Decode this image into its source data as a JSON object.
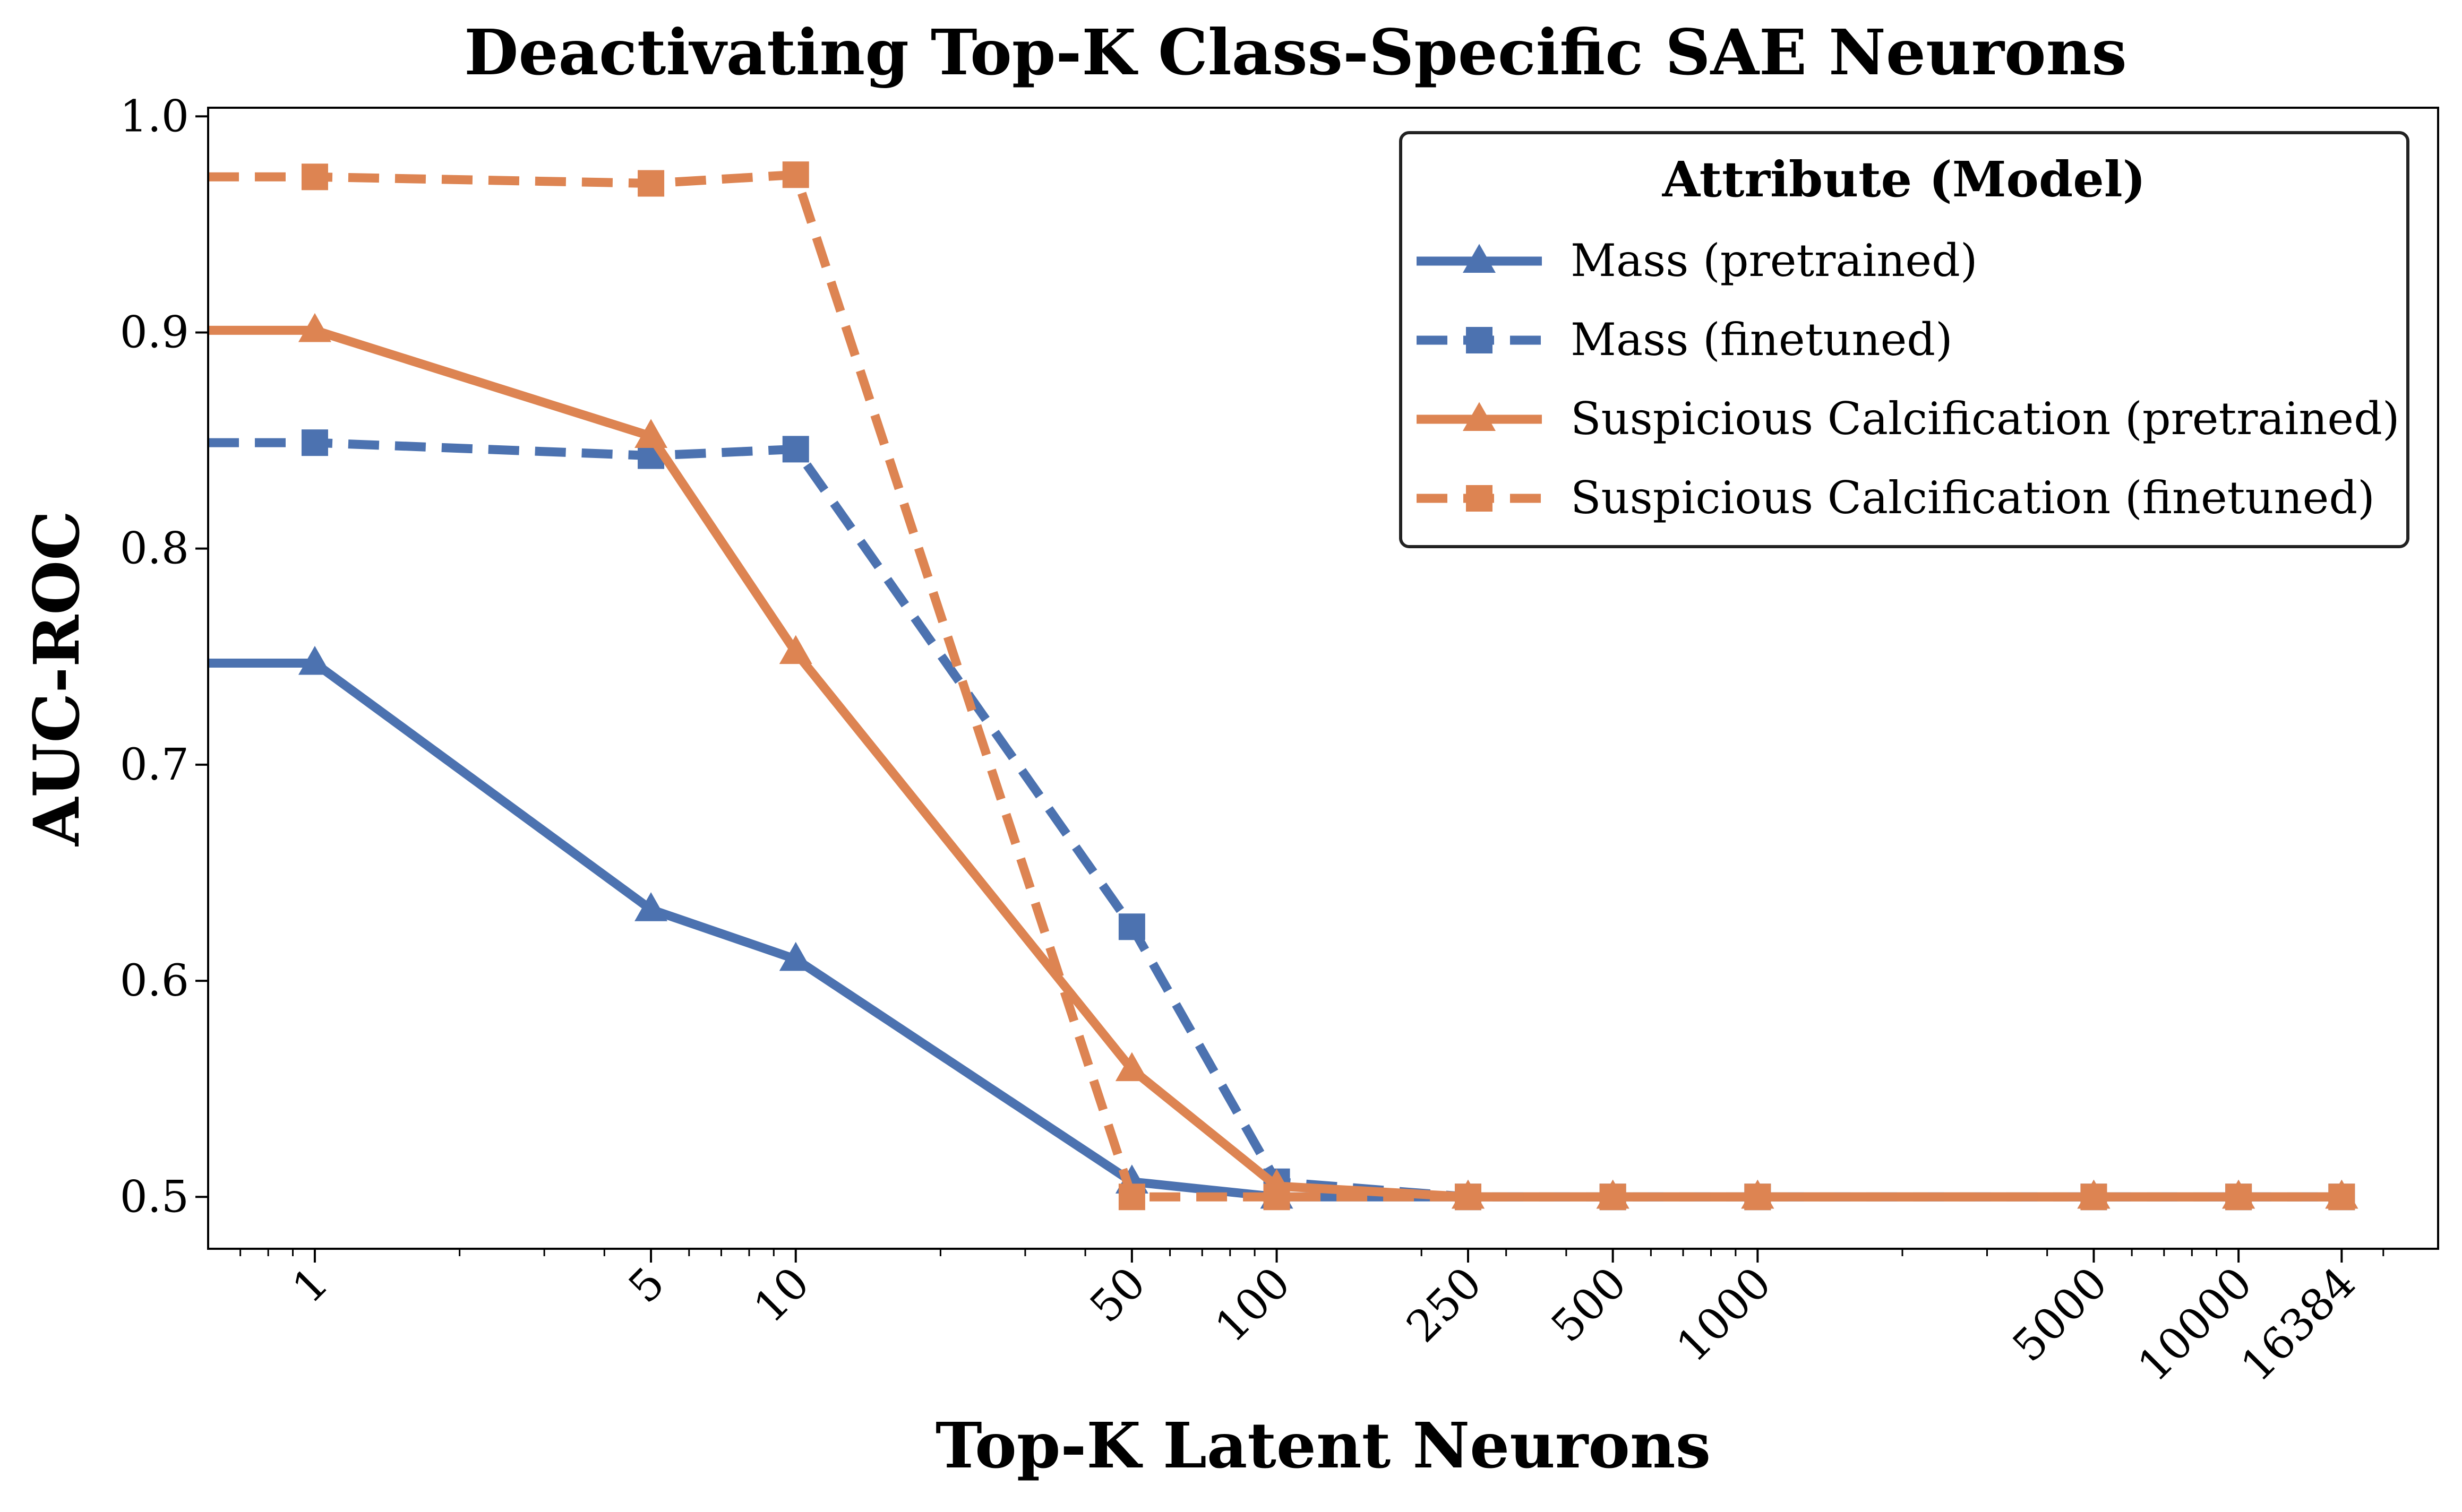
{
  "chart_data": {
    "type": "line",
    "title": "Deactivating Top-K Class-Specific SAE Neurons",
    "xlabel": "Top-K Latent Neurons",
    "ylabel": "AUC-ROC",
    "xscale": "log",
    "xlim": [
      0.6,
      26000
    ],
    "ylim": [
      0.476,
      1.004
    ],
    "x_ticks": [
      1,
      5,
      10,
      50,
      100,
      250,
      500,
      1000,
      5000,
      10000,
      16384
    ],
    "x_tick_labels": [
      "1",
      "5",
      "10",
      "50",
      "100",
      "250",
      "500",
      "1000",
      "5000",
      "10000",
      "16384"
    ],
    "y_ticks": [
      0.5,
      0.6,
      0.7,
      0.8,
      0.9,
      1.0
    ],
    "y_tick_labels": [
      "0.5",
      "0.6",
      "0.7",
      "0.8",
      "0.9",
      "1.0"
    ],
    "grid": false,
    "legend": {
      "title": "Attribute (Model)",
      "position": "top-right"
    },
    "series": [
      {
        "name": "Mass (pretrained)",
        "color": "#4c72b0",
        "linestyle": "solid",
        "marker": "triangle",
        "x": [
          0.6,
          1,
          5,
          10,
          50,
          100,
          250,
          500,
          1000,
          5000,
          10000,
          16384
        ],
        "y": [
          0.747,
          0.747,
          0.633,
          0.61,
          0.507,
          0.5,
          0.5,
          0.5,
          0.5,
          0.5,
          0.5,
          0.5
        ]
      },
      {
        "name": "Mass (finetuned)",
        "color": "#4c72b0",
        "linestyle": "dashed",
        "marker": "square",
        "x": [
          0.6,
          1,
          5,
          10,
          50,
          100,
          250,
          500,
          1000,
          5000,
          10000,
          16384
        ],
        "y": [
          0.849,
          0.849,
          0.843,
          0.846,
          0.625,
          0.507,
          0.5,
          0.5,
          0.5,
          0.5,
          0.5,
          0.5
        ]
      },
      {
        "name": "Suspicious Calcification (pretrained)",
        "color": "#dd8452",
        "linestyle": "solid",
        "marker": "triangle",
        "x": [
          0.6,
          1,
          5,
          10,
          50,
          100,
          250,
          500,
          1000,
          5000,
          10000,
          16384
        ],
        "y": [
          0.901,
          0.901,
          0.852,
          0.752,
          0.559,
          0.505,
          0.5,
          0.5,
          0.5,
          0.5,
          0.5,
          0.5
        ]
      },
      {
        "name": "Suspicious Calcification (finetuned)",
        "color": "#dd8452",
        "linestyle": "dashed",
        "marker": "square",
        "x": [
          0.6,
          1,
          5,
          10,
          50,
          100,
          250,
          500,
          1000,
          5000,
          10000,
          16384
        ],
        "y": [
          0.972,
          0.972,
          0.969,
          0.973,
          0.5,
          0.5,
          0.5,
          0.5,
          0.5,
          0.5,
          0.5,
          0.5
        ]
      }
    ]
  }
}
